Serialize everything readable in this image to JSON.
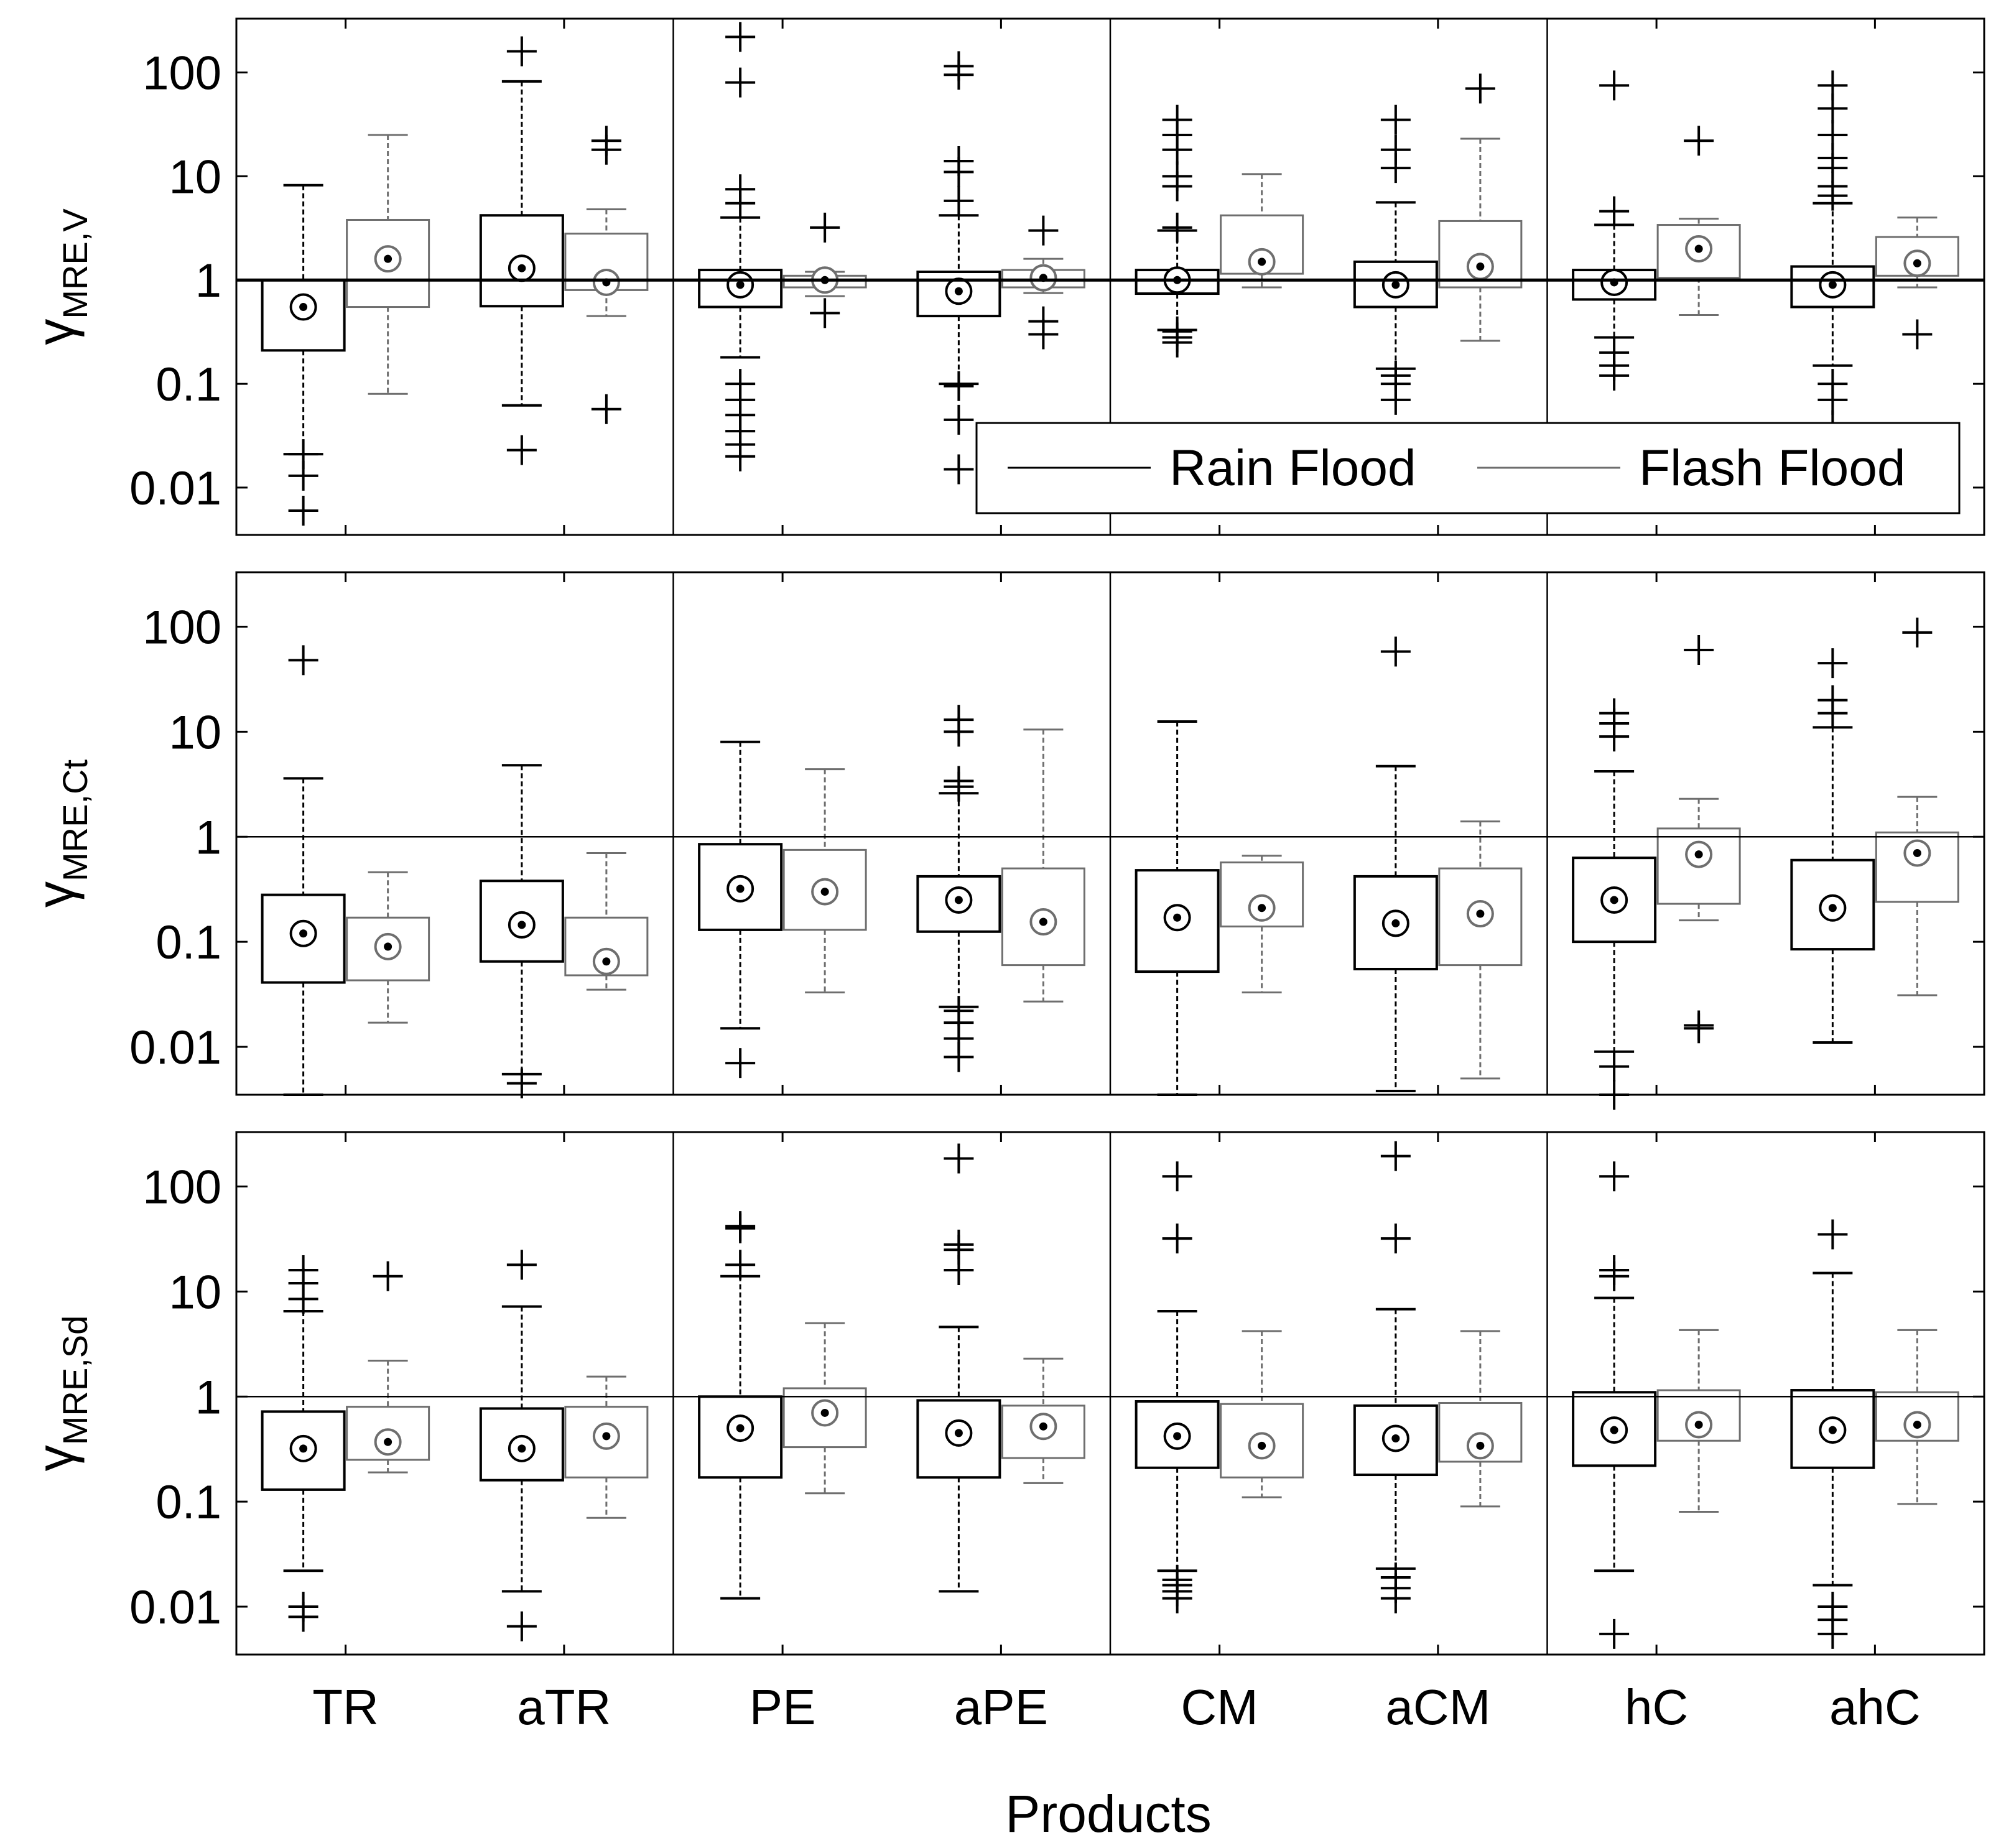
{
  "figure": {
    "xlabel": "Products",
    "categories": [
      "TR",
      "aTR",
      "PE",
      "aPE",
      "CM",
      "aCM",
      "hC",
      "ahC"
    ],
    "legend": {
      "placement": "lower-right of top panel",
      "items": [
        "Rain Flood",
        "Flash Flood"
      ]
    },
    "tick_labels": [
      "0.01",
      "0.1",
      "1",
      "10",
      "100"
    ]
  },
  "colors": {
    "rain": "#000000",
    "flash": "#6e6e6e",
    "axis": "#000000"
  },
  "chart_data": [
    {
      "type": "box",
      "ylabel_base": "γ",
      "ylabel_sub": "MRE,V",
      "yscale": "log",
      "ylim": [
        0.0035,
        330
      ],
      "reference_line": 1,
      "categories": [
        "TR",
        "aTR",
        "PE",
        "aPE",
        "CM",
        "aCM",
        "hC",
        "ahC"
      ],
      "series": [
        {
          "name": "Rain Flood",
          "boxes": [
            {
              "lo": 0.021,
              "q1": 0.21,
              "median": 0.55,
              "q3": 1.0,
              "hi": 8.2,
              "outliers": [
                0.006,
                0.013,
                0.021
              ]
            },
            {
              "lo": 0.062,
              "q1": 0.56,
              "median": 1.3,
              "q3": 4.2,
              "hi": 82,
              "outliers": [
                0.023,
                160
              ]
            },
            {
              "lo": 0.18,
              "q1": 0.55,
              "median": 0.9,
              "q3": 1.25,
              "hi": 4.0,
              "outliers": [
                0.02,
                0.026,
                0.035,
                0.05,
                0.07,
                0.1,
                5.5,
                7.5,
                80,
                220
              ]
            },
            {
              "lo": 0.1,
              "q1": 0.45,
              "median": 0.78,
              "q3": 1.2,
              "hi": 4.2,
              "outliers": [
                0.015,
                0.045,
                0.095,
                5.8,
                11,
                14,
                95,
                115
              ]
            },
            {
              "lo": 0.33,
              "q1": 0.74,
              "median": 1.0,
              "q3": 1.25,
              "hi": 3.0,
              "outliers": [
                0.25,
                0.28,
                0.32,
                3.2,
                8,
                10,
                18,
                25,
                35
              ]
            },
            {
              "lo": 0.14,
              "q1": 0.55,
              "median": 0.9,
              "q3": 1.5,
              "hi": 5.6,
              "outliers": [
                0.07,
                0.1,
                0.12,
                12,
                18,
                35
              ]
            },
            {
              "lo": 0.28,
              "q1": 0.65,
              "median": 0.95,
              "q3": 1.25,
              "hi": 3.4,
              "outliers": [
                0.12,
                0.15,
                0.2,
                4.6,
                75
              ]
            },
            {
              "lo": 0.15,
              "q1": 0.55,
              "median": 0.9,
              "q3": 1.35,
              "hi": 5.5,
              "outliers": [
                0.04,
                0.07,
                0.1,
                6.5,
                8,
                12,
                15,
                25,
                45,
                75
              ]
            }
          ]
        },
        {
          "name": "Flash Flood",
          "boxes": [
            {
              "lo": 0.08,
              "q1": 0.55,
              "median": 1.6,
              "q3": 3.8,
              "hi": 25,
              "outliers": []
            },
            {
              "lo": 0.45,
              "q1": 0.8,
              "median": 0.95,
              "q3": 2.8,
              "hi": 4.8,
              "outliers": [
                0.057,
                18,
                22
              ]
            },
            {
              "lo": 0.7,
              "q1": 0.85,
              "median": 1.0,
              "q3": 1.1,
              "hi": 1.2,
              "outliers": [
                0.48,
                3.2
              ]
            },
            {
              "lo": 0.75,
              "q1": 0.85,
              "median": 1.05,
              "q3": 1.25,
              "hi": 1.6,
              "outliers": [
                0.3,
                0.4,
                3.0
              ]
            },
            {
              "lo": 0.85,
              "q1": 1.15,
              "median": 1.5,
              "q3": 4.2,
              "hi": 10.5,
              "outliers": []
            },
            {
              "lo": 0.26,
              "q1": 0.85,
              "median": 1.35,
              "q3": 3.7,
              "hi": 23,
              "outliers": [
                70
              ]
            },
            {
              "lo": 0.46,
              "q1": 1.05,
              "median": 2.0,
              "q3": 3.4,
              "hi": 3.9,
              "outliers": [
                22
              ]
            },
            {
              "lo": 0.85,
              "q1": 1.1,
              "median": 1.45,
              "q3": 2.6,
              "hi": 4.0,
              "outliers": [
                0.3
              ]
            }
          ]
        }
      ]
    },
    {
      "type": "box",
      "ylabel_base": "γ",
      "ylabel_sub": "MRE,Ct",
      "yscale": "log",
      "ylim": [
        0.0035,
        330
      ],
      "reference_line": 1,
      "categories": [
        "TR",
        "aTR",
        "PE",
        "aPE",
        "CM",
        "aCM",
        "hC",
        "ahC"
      ],
      "series": [
        {
          "name": "Rain Flood",
          "boxes": [
            {
              "lo": 0.003,
              "q1": 0.041,
              "median": 0.12,
              "q3": 0.28,
              "hi": 3.6,
              "outliers": [
                48
              ]
            },
            {
              "lo": 0.0055,
              "q1": 0.065,
              "median": 0.145,
              "q3": 0.38,
              "hi": 4.8,
              "outliers": [
                0.0045
              ]
            },
            {
              "lo": 0.015,
              "q1": 0.13,
              "median": 0.32,
              "q3": 0.85,
              "hi": 8.0,
              "outliers": [
                0.007
              ]
            },
            {
              "lo": 0.024,
              "q1": 0.125,
              "median": 0.25,
              "q3": 0.42,
              "hi": 2.6,
              "outliers": [
                0.008,
                0.012,
                0.017,
                0.022,
                3.0,
                3.4,
                10,
                13
              ]
            },
            {
              "lo": 0.003,
              "q1": 0.052,
              "median": 0.17,
              "q3": 0.48,
              "hi": 12.5,
              "outliers": []
            },
            {
              "lo": 0.0038,
              "q1": 0.055,
              "median": 0.15,
              "q3": 0.42,
              "hi": 4.7,
              "outliers": [
                58
              ]
            },
            {
              "lo": 0.009,
              "q1": 0.1,
              "median": 0.25,
              "q3": 0.63,
              "hi": 4.2,
              "outliers": [
                0.0035,
                0.0065,
                9,
                12,
                15
              ]
            },
            {
              "lo": 0.011,
              "q1": 0.085,
              "median": 0.21,
              "q3": 0.6,
              "hi": 11,
              "outliers": [
                15,
                20,
                45
              ]
            }
          ]
        },
        {
          "name": "Flash Flood",
          "boxes": [
            {
              "lo": 0.017,
              "q1": 0.043,
              "median": 0.09,
              "q3": 0.17,
              "hi": 0.46,
              "outliers": []
            },
            {
              "lo": 0.035,
              "q1": 0.048,
              "median": 0.065,
              "q3": 0.17,
              "hi": 0.7,
              "outliers": []
            },
            {
              "lo": 0.033,
              "q1": 0.13,
              "median": 0.3,
              "q3": 0.75,
              "hi": 4.4,
              "outliers": []
            },
            {
              "lo": 0.027,
              "q1": 0.06,
              "median": 0.155,
              "q3": 0.5,
              "hi": 10.5,
              "outliers": []
            },
            {
              "lo": 0.033,
              "q1": 0.14,
              "median": 0.21,
              "q3": 0.57,
              "hi": 0.66,
              "outliers": []
            },
            {
              "lo": 0.005,
              "q1": 0.06,
              "median": 0.185,
              "q3": 0.5,
              "hi": 1.4,
              "outliers": []
            },
            {
              "lo": 0.16,
              "q1": 0.23,
              "median": 0.68,
              "q3": 1.2,
              "hi": 2.3,
              "outliers": [
                0.015,
                0.016,
                60
              ]
            },
            {
              "lo": 0.031,
              "q1": 0.24,
              "median": 0.7,
              "q3": 1.1,
              "hi": 2.4,
              "outliers": [
                88
              ]
            }
          ]
        }
      ]
    },
    {
      "type": "box",
      "ylabel_base": "γ",
      "ylabel_sub": "MRE,Sd",
      "yscale": "log",
      "ylim": [
        0.0035,
        330
      ],
      "reference_line": 1,
      "categories": [
        "TR",
        "aTR",
        "PE",
        "aPE",
        "CM",
        "aCM",
        "hC",
        "ahC"
      ],
      "series": [
        {
          "name": "Rain Flood",
          "boxes": [
            {
              "lo": 0.022,
              "q1": 0.13,
              "median": 0.32,
              "q3": 0.72,
              "hi": 6.5,
              "outliers": [
                0.008,
                0.01,
                8.5,
                12,
                16
              ]
            },
            {
              "lo": 0.014,
              "q1": 0.16,
              "median": 0.32,
              "q3": 0.77,
              "hi": 7.2,
              "outliers": [
                0.0065,
                18
              ]
            },
            {
              "lo": 0.012,
              "q1": 0.17,
              "median": 0.5,
              "q3": 1.0,
              "hi": 14,
              "outliers": [
                18,
                40,
                42
              ]
            },
            {
              "lo": 0.014,
              "q1": 0.17,
              "median": 0.45,
              "q3": 0.92,
              "hi": 4.6,
              "outliers": [
                16,
                25,
                28,
                185
              ]
            },
            {
              "lo": 0.022,
              "q1": 0.21,
              "median": 0.42,
              "q3": 0.9,
              "hi": 6.5,
              "outliers": [
                0.012,
                0.014,
                0.016,
                0.018,
                32,
                125
              ]
            },
            {
              "lo": 0.023,
              "q1": 0.18,
              "median": 0.4,
              "q3": 0.82,
              "hi": 6.8,
              "outliers": [
                0.012,
                0.015,
                0.019,
                32,
                195
              ]
            },
            {
              "lo": 0.022,
              "q1": 0.22,
              "median": 0.48,
              "q3": 1.1,
              "hi": 8.7,
              "outliers": [
                0.0055,
                14,
                16,
                125
              ]
            },
            {
              "lo": 0.016,
              "q1": 0.21,
              "median": 0.48,
              "q3": 1.15,
              "hi": 15,
              "outliers": [
                0.0055,
                0.0075,
                0.01,
                35
              ]
            }
          ]
        },
        {
          "name": "Flash Flood",
          "boxes": [
            {
              "lo": 0.19,
              "q1": 0.25,
              "median": 0.37,
              "q3": 0.8,
              "hi": 2.2,
              "outliers": [
                14
              ]
            },
            {
              "lo": 0.07,
              "q1": 0.17,
              "median": 0.42,
              "q3": 0.8,
              "hi": 1.55,
              "outliers": []
            },
            {
              "lo": 0.12,
              "q1": 0.33,
              "median": 0.7,
              "q3": 1.2,
              "hi": 5.0,
              "outliers": []
            },
            {
              "lo": 0.15,
              "q1": 0.26,
              "median": 0.52,
              "q3": 0.82,
              "hi": 2.3,
              "outliers": []
            },
            {
              "lo": 0.11,
              "q1": 0.17,
              "median": 0.34,
              "q3": 0.85,
              "hi": 4.2,
              "outliers": []
            },
            {
              "lo": 0.09,
              "q1": 0.24,
              "median": 0.34,
              "q3": 0.87,
              "hi": 4.2,
              "outliers": []
            },
            {
              "lo": 0.08,
              "q1": 0.38,
              "median": 0.54,
              "q3": 1.15,
              "hi": 4.3,
              "outliers": []
            },
            {
              "lo": 0.095,
              "q1": 0.38,
              "median": 0.54,
              "q3": 1.1,
              "hi": 4.3,
              "outliers": []
            }
          ]
        }
      ]
    }
  ]
}
